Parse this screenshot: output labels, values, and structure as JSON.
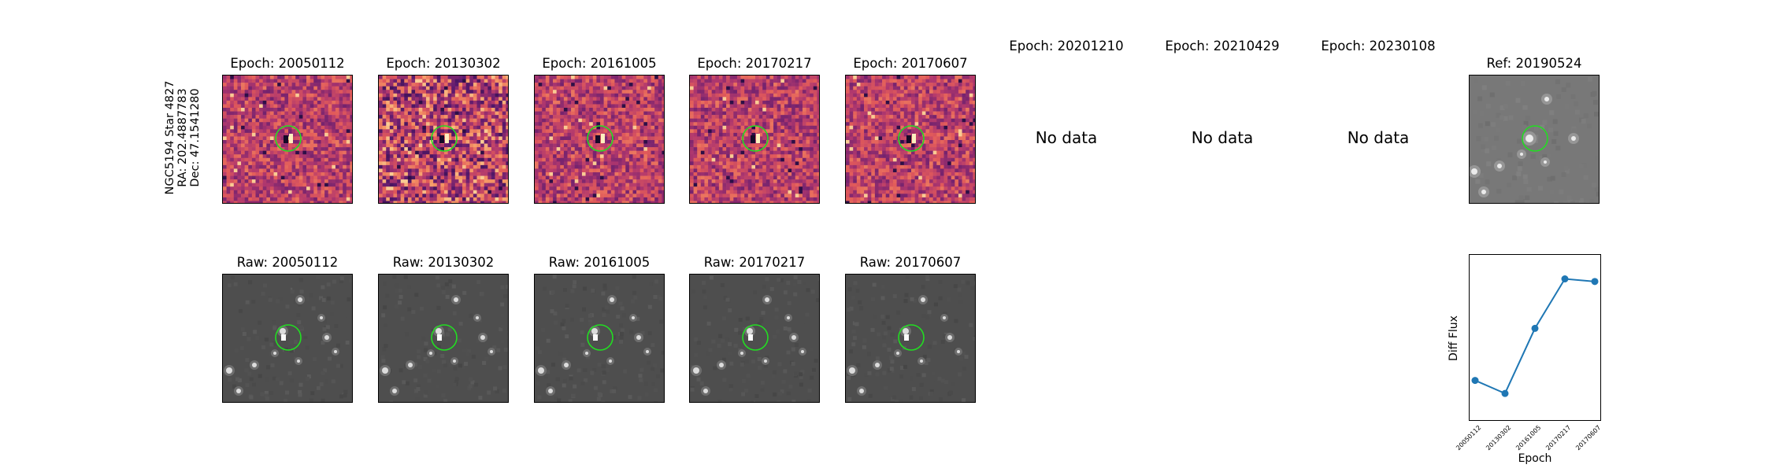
{
  "star_label": {
    "line1": "NGC5194 Star 4827",
    "line2": "RA: 202.4887783",
    "line3": "Dec: 47.1541280"
  },
  "epoch_panels": [
    {
      "title": "Epoch: 20050112",
      "has_data": true
    },
    {
      "title": "Epoch: 20130302",
      "has_data": true
    },
    {
      "title": "Epoch: 20161005",
      "has_data": true
    },
    {
      "title": "Epoch: 20170217",
      "has_data": true
    },
    {
      "title": "Epoch: 20170607",
      "has_data": true
    },
    {
      "title": "Epoch: 20201210",
      "has_data": false,
      "message": "No data"
    },
    {
      "title": "Epoch: 20210429",
      "has_data": false,
      "message": "No data"
    },
    {
      "title": "Epoch: 20230108",
      "has_data": false,
      "message": "No data"
    }
  ],
  "ref_panel": {
    "title": "Ref: 20190524"
  },
  "raw_panels": [
    {
      "title": "Raw: 20050112"
    },
    {
      "title": "Raw: 20130302"
    },
    {
      "title": "Raw: 20161005"
    },
    {
      "title": "Raw: 20170217"
    },
    {
      "title": "Raw: 20170607"
    }
  ],
  "colors": {
    "marker_circle": "#22dd22",
    "line": "#1f77b4"
  },
  "chart_data": {
    "type": "line",
    "title": "",
    "xlabel": "Epoch",
    "ylabel": "Diff Flux",
    "categories": [
      "20050112",
      "20130302",
      "20161005",
      "20170217",
      "20170607"
    ],
    "values": [
      0.22,
      0.12,
      0.62,
      1.0,
      0.98
    ],
    "ylim": [
      0.0,
      1.1
    ],
    "grid": false
  }
}
